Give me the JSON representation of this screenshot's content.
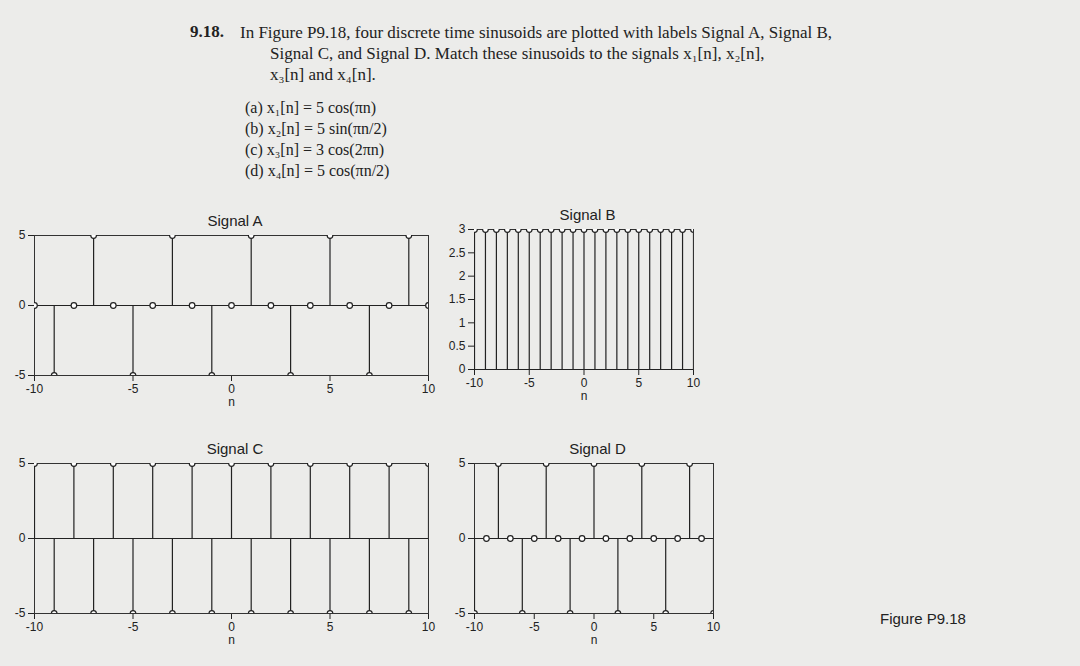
{
  "problem": {
    "number": "9.18.",
    "lines": [
      "In Figure P9.18, four discrete time sinusoids are plotted with labels Signal A, Signal B,",
      "Signal C, and Signal D. Match these sinusoids to the signals x₁[n], x₂[n],",
      "x₃[n] and x₄[n]."
    ],
    "options": [
      "(a) x₁[n] = 5 cos(πn)",
      "(b) x₂[n] = 5 sin(πn/2)",
      "(c) x₃[n] = 3 cos(2πn)",
      "(d) x₄[n] = 5 cos(πn/2)"
    ],
    "caption": "Figure P9.18"
  },
  "chart_data": [
    {
      "type": "stem",
      "title": "Signal A",
      "xlabel": "n",
      "marker": "o",
      "color": "#222222",
      "x": [
        -10,
        -9,
        -8,
        -7,
        -6,
        -5,
        -4,
        -3,
        -2,
        -1,
        0,
        1,
        2,
        3,
        4,
        5,
        6,
        7,
        8,
        9,
        10
      ],
      "values": [
        0,
        -5,
        0,
        5,
        0,
        -5,
        0,
        5,
        0,
        -5,
        0,
        5,
        0,
        -5,
        0,
        5,
        0,
        -5,
        0,
        5,
        0
      ],
      "xlim": [
        -10,
        10
      ],
      "xticks": [
        -10,
        -5,
        0,
        5,
        10
      ],
      "ylim": [
        -5,
        5
      ],
      "yticks": [
        -5,
        0,
        5
      ]
    },
    {
      "type": "stem",
      "title": "Signal B",
      "xlabel": "n",
      "marker": "o",
      "color": "#222222",
      "x": [
        -10,
        -9,
        -8,
        -7,
        -6,
        -5,
        -4,
        -3,
        -2,
        -1,
        0,
        1,
        2,
        3,
        4,
        5,
        6,
        7,
        8,
        9,
        10
      ],
      "values": [
        3,
        3,
        3,
        3,
        3,
        3,
        3,
        3,
        3,
        3,
        3,
        3,
        3,
        3,
        3,
        3,
        3,
        3,
        3,
        3,
        3
      ],
      "xlim": [
        -10,
        10
      ],
      "xticks": [
        -10,
        -5,
        0,
        5,
        10
      ],
      "ylim": [
        0,
        3
      ],
      "yticks": [
        0,
        0.5,
        1,
        1.5,
        2,
        2.5,
        3
      ]
    },
    {
      "type": "stem",
      "title": "Signal C",
      "xlabel": "n",
      "marker": "o",
      "color": "#222222",
      "x": [
        -10,
        -9,
        -8,
        -7,
        -6,
        -5,
        -4,
        -3,
        -2,
        -1,
        0,
        1,
        2,
        3,
        4,
        5,
        6,
        7,
        8,
        9,
        10
      ],
      "values": [
        5,
        -5,
        5,
        -5,
        5,
        -5,
        5,
        -5,
        5,
        -5,
        5,
        -5,
        5,
        -5,
        5,
        -5,
        5,
        -5,
        5,
        -5,
        5
      ],
      "xlim": [
        -10,
        10
      ],
      "xticks": [
        -10,
        -5,
        0,
        5,
        10
      ],
      "ylim": [
        -5,
        5
      ],
      "yticks": [
        -5,
        0,
        5
      ]
    },
    {
      "type": "stem",
      "title": "Signal D",
      "xlabel": "n",
      "marker": "o",
      "color": "#222222",
      "x": [
        -10,
        -9,
        -8,
        -7,
        -6,
        -5,
        -4,
        -3,
        -2,
        -1,
        0,
        1,
        2,
        3,
        4,
        5,
        6,
        7,
        8,
        9,
        10
      ],
      "values": [
        -5,
        0,
        5,
        0,
        -5,
        0,
        5,
        0,
        -5,
        0,
        5,
        0,
        -5,
        0,
        5,
        0,
        -5,
        0,
        5,
        0,
        -5
      ],
      "xlim": [
        -10,
        10
      ],
      "xticks": [
        -10,
        -5,
        0,
        5,
        10
      ],
      "ylim": [
        -5,
        5
      ],
      "yticks": [
        -5,
        0,
        5
      ]
    }
  ]
}
